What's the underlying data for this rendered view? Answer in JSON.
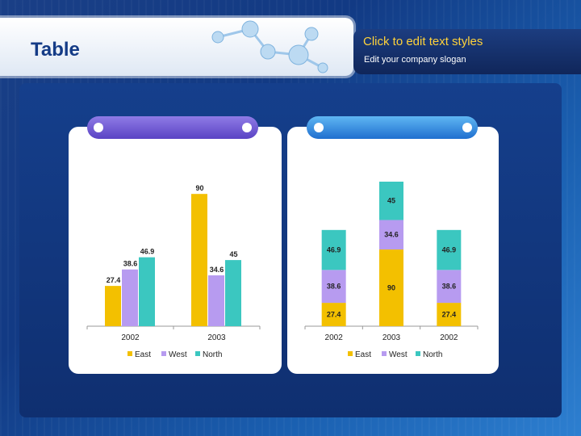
{
  "page": {
    "title": "Table",
    "slogan_title": "Click to edit text styles",
    "slogan_subtitle": "Edit your company slogan"
  },
  "colors": {
    "east": "#f3c000",
    "west": "#b79bf0",
    "north": "#3bc7c0"
  },
  "chart_data": [
    {
      "type": "bar",
      "categories": [
        "2002",
        "2003"
      ],
      "series": [
        {
          "name": "East",
          "values": [
            27.4,
            90
          ]
        },
        {
          "name": "West",
          "values": [
            38.6,
            34.6
          ]
        },
        {
          "name": "North",
          "values": [
            46.9,
            45
          ]
        }
      ],
      "ylim": [
        0,
        100
      ],
      "legend": "bottom"
    },
    {
      "type": "bar",
      "stacked": true,
      "categories": [
        "2002",
        "2003",
        "2002"
      ],
      "series": [
        {
          "name": "East",
          "values": [
            27.4,
            90,
            27.4
          ]
        },
        {
          "name": "West",
          "values": [
            38.6,
            34.6,
            38.6
          ]
        },
        {
          "name": "North",
          "values": [
            46.9,
            45,
            46.9
          ]
        }
      ],
      "ylim": [
        0,
        180
      ],
      "legend": "bottom"
    }
  ]
}
